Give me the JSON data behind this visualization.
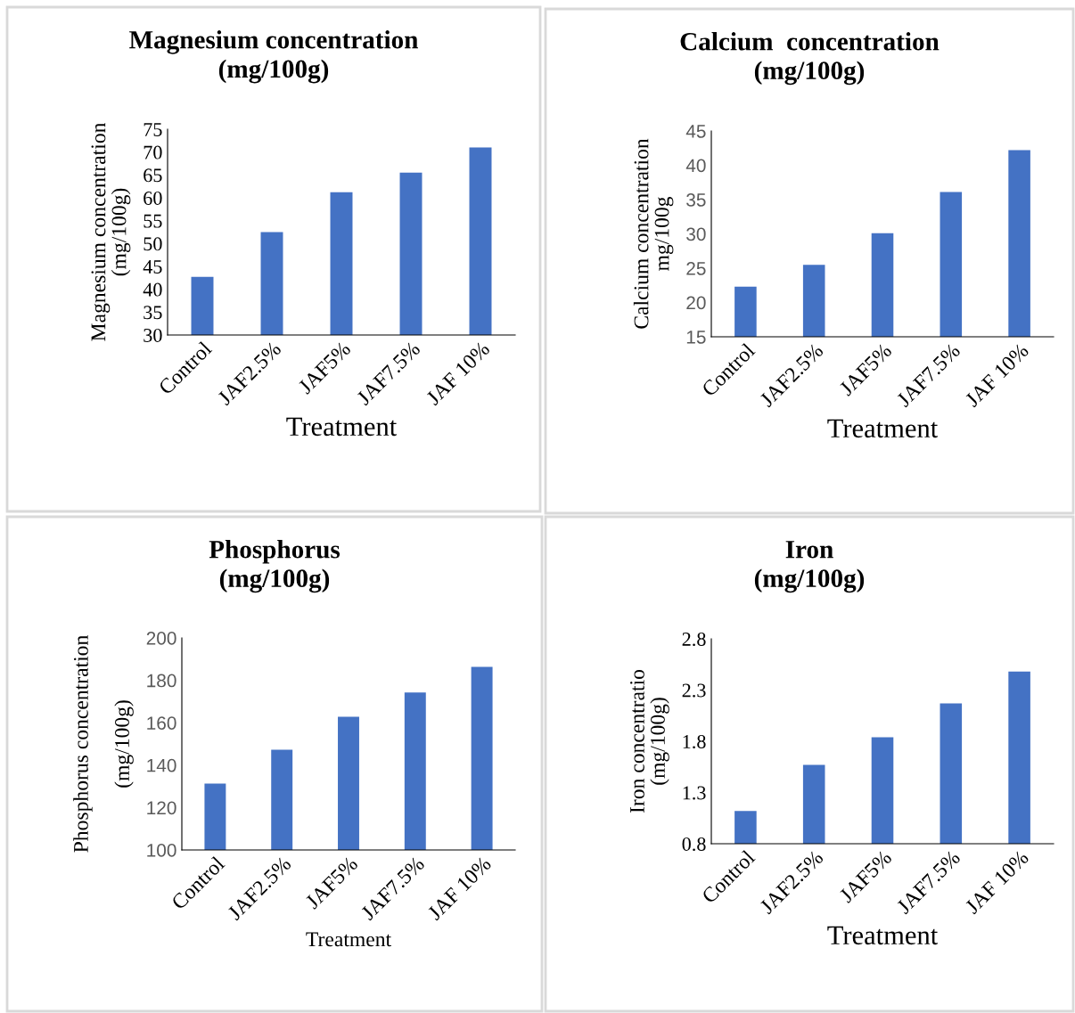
{
  "chart_data": [
    {
      "type": "bar",
      "title": "Magnesium concentration\n(mg/100g)",
      "xlabel": "Treatment",
      "ylabel": "Magnesium concentration\n(mg/100g)",
      "categories": [
        "Control",
        "JAF2.5%",
        "JAF5%",
        "JAF7.5%",
        "JAF 10%"
      ],
      "values": [
        42.7,
        52.5,
        61.2,
        65.5,
        71.0
      ],
      "color": "#4472c4",
      "ylim": [
        30,
        75
      ],
      "yticks": [
        30,
        35,
        40,
        45,
        50,
        55,
        60,
        65,
        70,
        75
      ],
      "grid": false,
      "legend": false
    },
    {
      "type": "bar",
      "title": "Calcium  concentration\n(mg/100g)",
      "xlabel": "Treatment",
      "ylabel": "Calcium concentration\nmg/100g",
      "categories": [
        "Control",
        "JAF2.5%",
        "JAF5%",
        "JAF7.5%",
        "JAF 10%"
      ],
      "values": [
        22.3,
        25.5,
        30.1,
        36.1,
        42.2
      ],
      "color": "#4472c4",
      "ylim": [
        15,
        45
      ],
      "yticks": [
        15,
        20,
        25,
        30,
        35,
        40,
        45
      ],
      "grid": false,
      "legend": false
    },
    {
      "type": "bar",
      "title": "Phosphorus\n(mg/100g)",
      "xlabel": "Treatment",
      "ylabel": "Phosphorus concentration\n\n(mg/100g)",
      "categories": [
        "Control",
        "JAF2.5%",
        "JAF5%",
        "JAF7.5%",
        "JAF 10%"
      ],
      "values": [
        131.3,
        147.3,
        162.8,
        174.3,
        186.3
      ],
      "color": "#4472c4",
      "ylim": [
        100,
        200
      ],
      "yticks": [
        100,
        120,
        140,
        160,
        180,
        200
      ],
      "grid": false,
      "legend": false
    },
    {
      "type": "bar",
      "title": "Iron\n(mg/100g)",
      "xlabel": "Treatment",
      "ylabel": "Iron concentratio\n(mg/100g)",
      "categories": [
        "Control",
        "JAF2.5%",
        "JAF5%",
        "JAF7.5%",
        "JAF 10%"
      ],
      "values": [
        1.12,
        1.57,
        1.84,
        2.17,
        2.48
      ],
      "color": "#4472c4",
      "ylim": [
        0.8,
        2.8
      ],
      "yticks": [
        0.8,
        1.3,
        1.8,
        2.3,
        2.8
      ],
      "grid": false,
      "legend": false
    }
  ]
}
